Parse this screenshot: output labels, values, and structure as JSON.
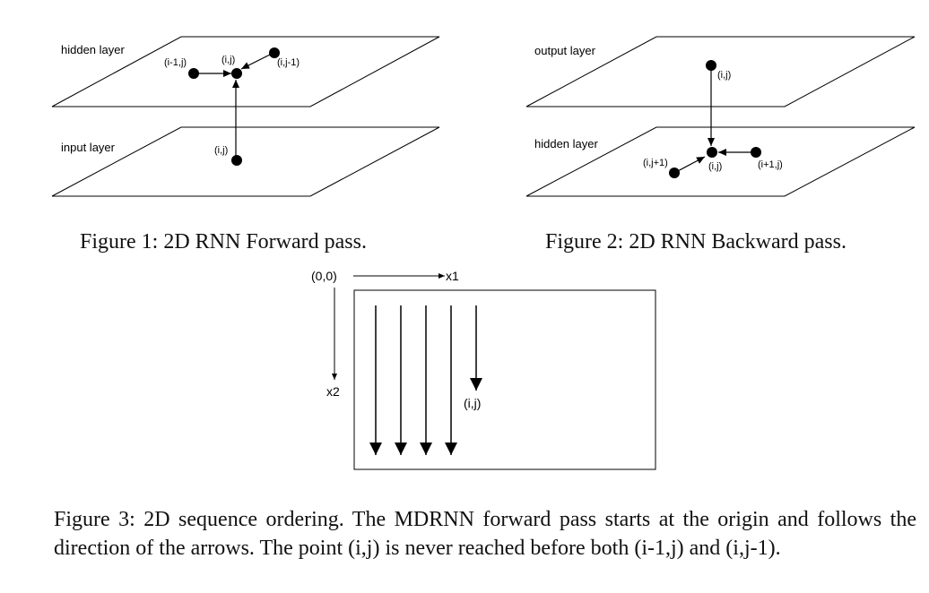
{
  "figure1": {
    "top_plane_label": "hidden layer",
    "bottom_plane_label": "input layer",
    "node_left_label": "(i-1,j)",
    "node_center_label": "(i,j)",
    "node_right_label": "(i,j-1)",
    "node_input_label": "(i,j)",
    "caption": "Figure 1: 2D RNN Forward pass."
  },
  "figure2": {
    "top_plane_label": "output layer",
    "bottom_plane_label": "hidden layer",
    "node_output_label": "(i,j)",
    "node_left_label": "(i,j+1)",
    "node_center_label": "(i,j)",
    "node_right_label": "(i+1,j)",
    "caption": "Figure 2: 2D RNN Backward pass."
  },
  "figure3": {
    "origin_label": "(0,0)",
    "x1_label": "x1",
    "x2_label": "x2",
    "point_label": "(i,j)",
    "caption": "Figure 3: 2D sequence ordering. The MDRNN forward pass starts at the origin and follows the direction of the arrows. The point (i,j) is never reached before both (i-1,j) and (i,j-1)."
  }
}
